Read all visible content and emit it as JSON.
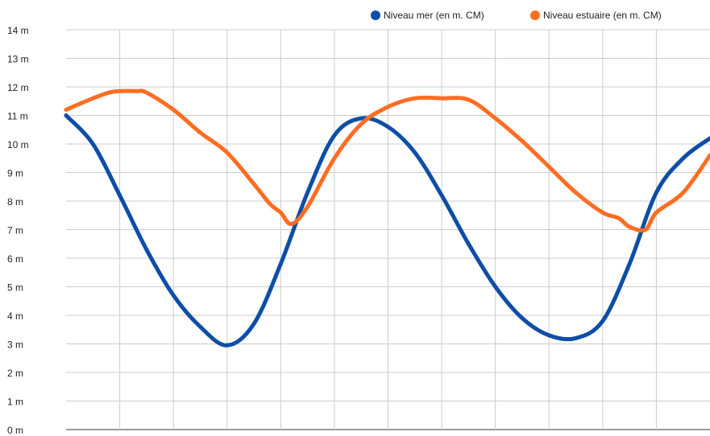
{
  "chart_data": {
    "type": "line",
    "x_unit": "hours",
    "xlim": [
      0,
      24
    ],
    "ylim": [
      0,
      14
    ],
    "y_ticks": [
      "0 m",
      "1 m",
      "2 m",
      "3 m",
      "4 m",
      "5 m",
      "6 m",
      "7 m",
      "8 m",
      "9 m",
      "10 m",
      "11 m",
      "12 m",
      "13 m",
      "14 m"
    ],
    "grid": true,
    "legend_position": "top-right",
    "series": [
      {
        "name": "Niveau mer (en m. CM)",
        "color": "#0d4ea6",
        "x": [
          0,
          1,
          2,
          3,
          4,
          5,
          6,
          7,
          8,
          9,
          10,
          11,
          12,
          13,
          14,
          15,
          16,
          17,
          18,
          19,
          20,
          21,
          22,
          23,
          24
        ],
        "y": [
          11.0,
          10.0,
          8.2,
          6.3,
          4.7,
          3.6,
          2.95,
          3.7,
          5.8,
          8.3,
          10.3,
          10.9,
          10.6,
          9.7,
          8.2,
          6.5,
          5.0,
          3.9,
          3.3,
          3.2,
          3.8,
          5.8,
          8.3,
          9.5,
          10.2
        ]
      },
      {
        "name": "Niveau estuaire (en m. CM)",
        "color": "#ff6d22",
        "x": [
          0,
          1,
          1.6,
          2,
          2.6,
          3,
          4,
          5,
          6,
          7,
          7.6,
          8,
          8.4,
          9,
          10,
          11,
          12,
          13,
          14,
          15,
          16,
          17,
          18,
          19,
          20,
          20.6,
          21,
          21.6,
          22,
          23,
          24
        ],
        "y": [
          11.2,
          11.6,
          11.8,
          11.85,
          11.85,
          11.8,
          11.2,
          10.4,
          9.7,
          8.6,
          7.9,
          7.6,
          7.2,
          7.8,
          9.5,
          10.7,
          11.3,
          11.6,
          11.6,
          11.55,
          10.9,
          10.1,
          9.2,
          8.3,
          7.6,
          7.4,
          7.1,
          7.0,
          7.6,
          8.3,
          9.6
        ]
      }
    ]
  }
}
